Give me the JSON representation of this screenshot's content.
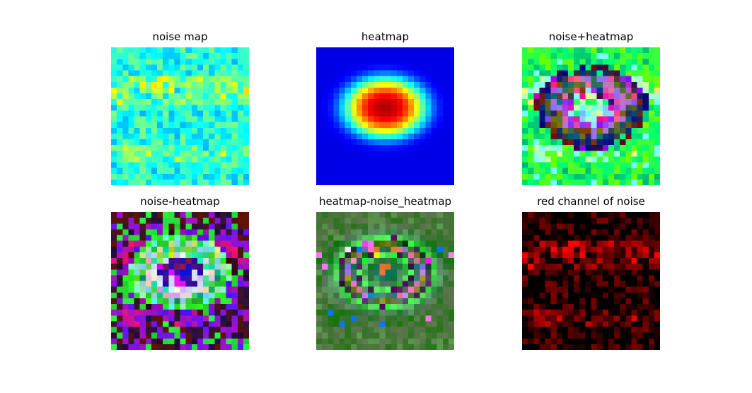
{
  "chart_data": [
    {
      "type": "heatmap",
      "title": "noise map",
      "render": "noise",
      "grid": false,
      "axes": "off"
    },
    {
      "type": "heatmap",
      "title": "heatmap",
      "render": "heatmap",
      "grid": false,
      "axes": "off"
    },
    {
      "type": "heatmap",
      "title": "noise+heatmap",
      "render": "noise_plus",
      "grid": false,
      "axes": "off"
    },
    {
      "type": "heatmap",
      "title": "noise-heatmap",
      "render": "noise_minus",
      "grid": false,
      "axes": "off"
    },
    {
      "type": "heatmap",
      "title": "heatmap-noise_heatmap",
      "render": "heatmap_minus",
      "grid": false,
      "axes": "off"
    },
    {
      "type": "heatmap",
      "title": "red channel of noise",
      "render": "red_channel",
      "grid": false,
      "axes": "off"
    }
  ],
  "colormap": "jet",
  "colors": {
    "background": "#ffffff",
    "red_channel": "#ff0000"
  }
}
